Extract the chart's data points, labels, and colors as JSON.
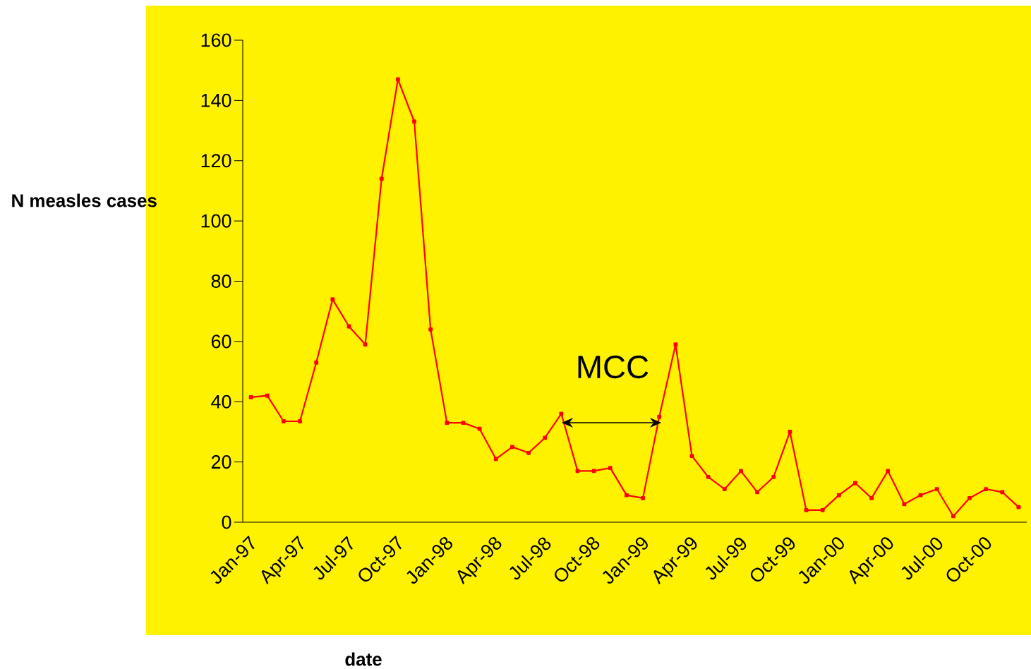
{
  "chart_data": {
    "type": "line",
    "xlabel": "date",
    "ylabel": "N measles cases",
    "annotations": [
      "MCC"
    ],
    "categories": [
      "Jan-97",
      null,
      null,
      "Apr-97",
      null,
      null,
      "Jul-97",
      null,
      null,
      "Oct-97",
      null,
      null,
      "Jan-98",
      null,
      null,
      "Apr-98",
      null,
      null,
      "Jul-98",
      null,
      null,
      "Oct-98",
      null,
      null,
      "Jan-99",
      null,
      null,
      "Apr-99",
      null,
      null,
      "Jul-99",
      null,
      null,
      "Oct-99",
      null,
      null,
      "Jan-00",
      null,
      null,
      "Apr-00",
      null,
      null,
      "Jul-00",
      null,
      null,
      "Oct-00",
      null,
      null
    ],
    "series": [
      {
        "color": "#ff0000",
        "values": [
          41.5,
          42,
          33.5,
          33.5,
          53,
          74,
          65,
          59,
          114,
          147,
          133,
          64,
          33,
          33,
          31,
          21,
          25,
          23,
          28,
          36,
          17,
          17,
          18,
          9,
          8,
          35,
          59,
          22,
          15,
          11,
          17,
          10,
          15,
          30,
          4,
          4,
          9,
          13,
          8,
          17,
          6,
          9,
          11,
          2,
          8,
          11,
          10,
          5
        ]
      }
    ],
    "ylim": [
      0,
      160
    ],
    "yticks": [
      0,
      20,
      40,
      60,
      80,
      100,
      120,
      140,
      160
    ],
    "marker": "square",
    "line_style": "solid"
  }
}
